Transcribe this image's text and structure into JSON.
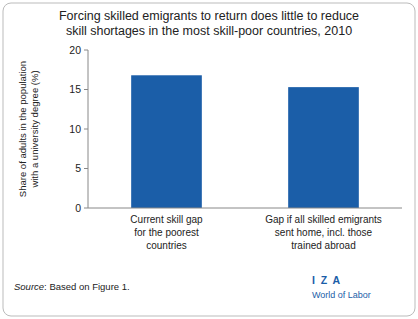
{
  "chart_data": {
    "type": "bar",
    "title": "Forcing skilled emigrants to return does little to reduce\nskill shortages in the most skill-poor countries, 2010",
    "categories": [
      "Current skill gap\nfor the poorest\ncountries",
      "Gap if all skilled emigrants\nsent home, incl. those\ntrained abroad"
    ],
    "values": [
      16.8,
      15.3
    ],
    "color": "#1B5EA8",
    "ylabel": "Share of adults in the population\nwith a university degree (%)",
    "ylim": [
      0,
      20
    ],
    "yticks": [
      0,
      5,
      10,
      15,
      20
    ],
    "grid": false,
    "annotations": [
      "Source: Based on Figure 1.",
      "I  Z  A",
      "World of Labor"
    ]
  }
}
